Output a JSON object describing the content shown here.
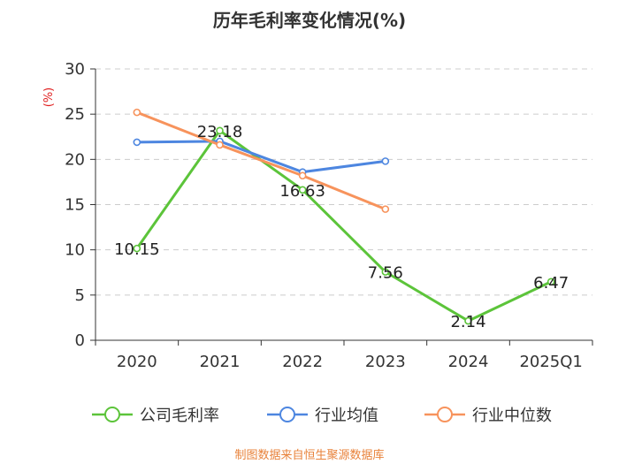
{
  "chart_data": {
    "type": "line",
    "title": "历年毛利率变化情况(%)",
    "ylabel": "(%)",
    "xlabel": "",
    "categories": [
      "2020",
      "2021",
      "2022",
      "2023",
      "2024",
      "2025Q1"
    ],
    "ylim": [
      0,
      30
    ],
    "yticks": [
      0,
      5,
      10,
      15,
      20,
      25,
      30
    ],
    "grid": true,
    "legend_position": "bottom",
    "series": [
      {
        "name": "公司毛利率",
        "color": "#5cc43a",
        "values": [
          10.15,
          23.18,
          16.63,
          7.56,
          2.14,
          6.47
        ],
        "labels": [
          "10.15",
          "23.18",
          "16.63",
          "7.56",
          "2.14",
          "6.47"
        ]
      },
      {
        "name": "行业均值",
        "color": "#4d86e0",
        "values": [
          21.9,
          22.0,
          18.6,
          19.8,
          null,
          null
        ]
      },
      {
        "name": "行业中位数",
        "color": "#f7935c",
        "values": [
          25.2,
          21.6,
          18.2,
          14.5,
          null,
          null
        ]
      }
    ]
  },
  "source_text": "制图数据来自恒生聚源数据库",
  "source_color": "#e8823a"
}
